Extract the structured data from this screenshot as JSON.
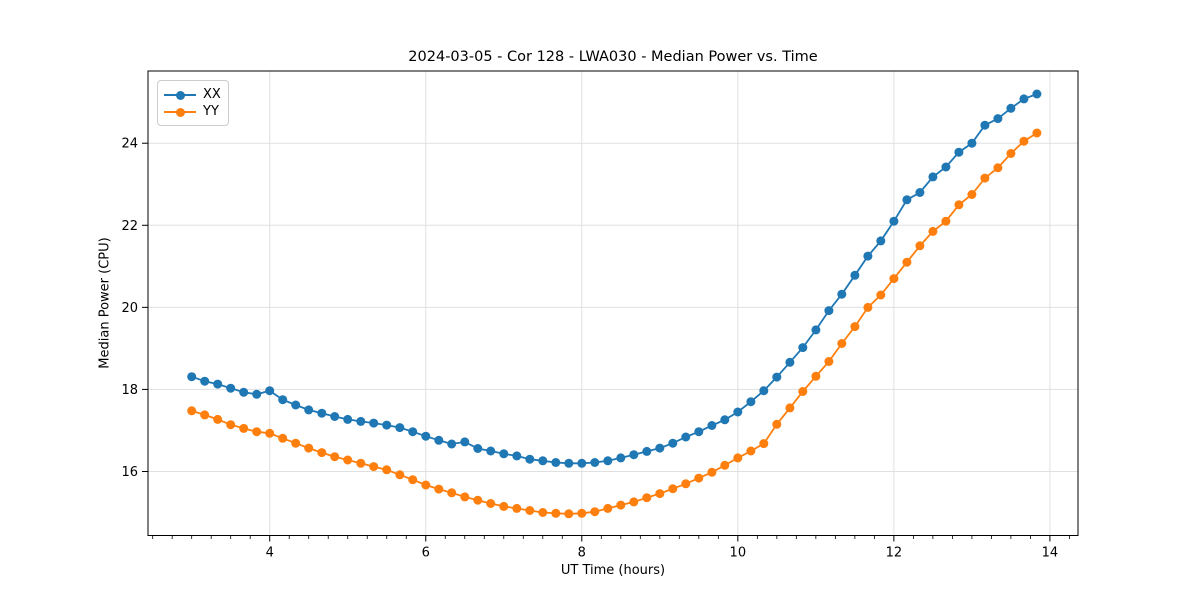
{
  "figure": {
    "background": "#ffffff",
    "spine_color": "#000000",
    "grid_color": "#e0e0e0",
    "tick_color": "#000000"
  },
  "chart_data": {
    "type": "line",
    "title": "2024-03-05 - Cor 128 - LWA030 - Median Power vs. Time",
    "xlabel": "UT Time (hours)",
    "ylabel": "Median Power (CPU)",
    "xlim": [
      2.44,
      14.36
    ],
    "ylim": [
      14.44,
      25.76
    ],
    "xticks": [
      4,
      6,
      8,
      10,
      12,
      14
    ],
    "xminor_step": 0.25,
    "yticks": [
      16,
      18,
      20,
      22,
      24
    ],
    "grid": true,
    "legend_position": "upper left",
    "marker": "circle",
    "x": [
      3.0,
      3.167,
      3.333,
      3.5,
      3.667,
      3.833,
      4.0,
      4.167,
      4.333,
      4.5,
      4.667,
      4.833,
      5.0,
      5.167,
      5.333,
      5.5,
      5.667,
      5.833,
      6.0,
      6.167,
      6.333,
      6.5,
      6.667,
      6.833,
      7.0,
      7.167,
      7.333,
      7.5,
      7.667,
      7.833,
      8.0,
      8.167,
      8.333,
      8.5,
      8.667,
      8.833,
      9.0,
      9.167,
      9.333,
      9.5,
      9.667,
      9.833,
      10.0,
      10.167,
      10.333,
      10.5,
      10.667,
      10.833,
      11.0,
      11.167,
      11.333,
      11.5,
      11.667,
      11.833,
      12.0,
      12.167,
      12.333,
      12.5,
      12.667,
      12.833,
      13.0,
      13.167,
      13.333,
      13.5,
      13.667,
      13.833
    ],
    "series": [
      {
        "name": "XX",
        "color": "#1f77b4",
        "values": [
          18.31,
          18.2,
          18.13,
          18.03,
          17.93,
          17.88,
          17.97,
          17.75,
          17.62,
          17.5,
          17.42,
          17.34,
          17.27,
          17.22,
          17.18,
          17.13,
          17.07,
          16.97,
          16.86,
          16.76,
          16.67,
          16.72,
          16.56,
          16.5,
          16.43,
          16.38,
          16.3,
          16.26,
          16.22,
          16.2,
          16.2,
          16.22,
          16.26,
          16.33,
          16.41,
          16.49,
          16.57,
          16.69,
          16.84,
          16.97,
          17.12,
          17.26,
          17.45,
          17.7,
          17.97,
          18.3,
          18.66,
          19.02,
          19.45,
          19.92,
          20.32,
          20.78,
          21.25,
          21.62,
          22.1,
          22.62,
          22.8,
          23.18,
          23.42,
          23.78,
          24.0,
          24.44,
          24.6,
          24.85,
          25.08,
          25.2
        ]
      },
      {
        "name": "YY",
        "color": "#ff7f0e",
        "values": [
          17.48,
          17.38,
          17.27,
          17.14,
          17.05,
          16.97,
          16.93,
          16.81,
          16.69,
          16.57,
          16.46,
          16.36,
          16.28,
          16.2,
          16.12,
          16.04,
          15.92,
          15.8,
          15.67,
          15.57,
          15.48,
          15.38,
          15.3,
          15.22,
          15.15,
          15.1,
          15.05,
          15.0,
          14.98,
          14.97,
          14.98,
          15.02,
          15.1,
          15.18,
          15.26,
          15.36,
          15.46,
          15.58,
          15.7,
          15.84,
          15.98,
          16.15,
          16.33,
          16.5,
          16.68,
          17.15,
          17.55,
          17.95,
          18.32,
          18.68,
          19.12,
          19.53,
          20.0,
          20.3,
          20.7,
          21.1,
          21.5,
          21.85,
          22.1,
          22.5,
          22.75,
          23.15,
          23.4,
          23.75,
          24.05,
          24.25
        ]
      }
    ]
  }
}
